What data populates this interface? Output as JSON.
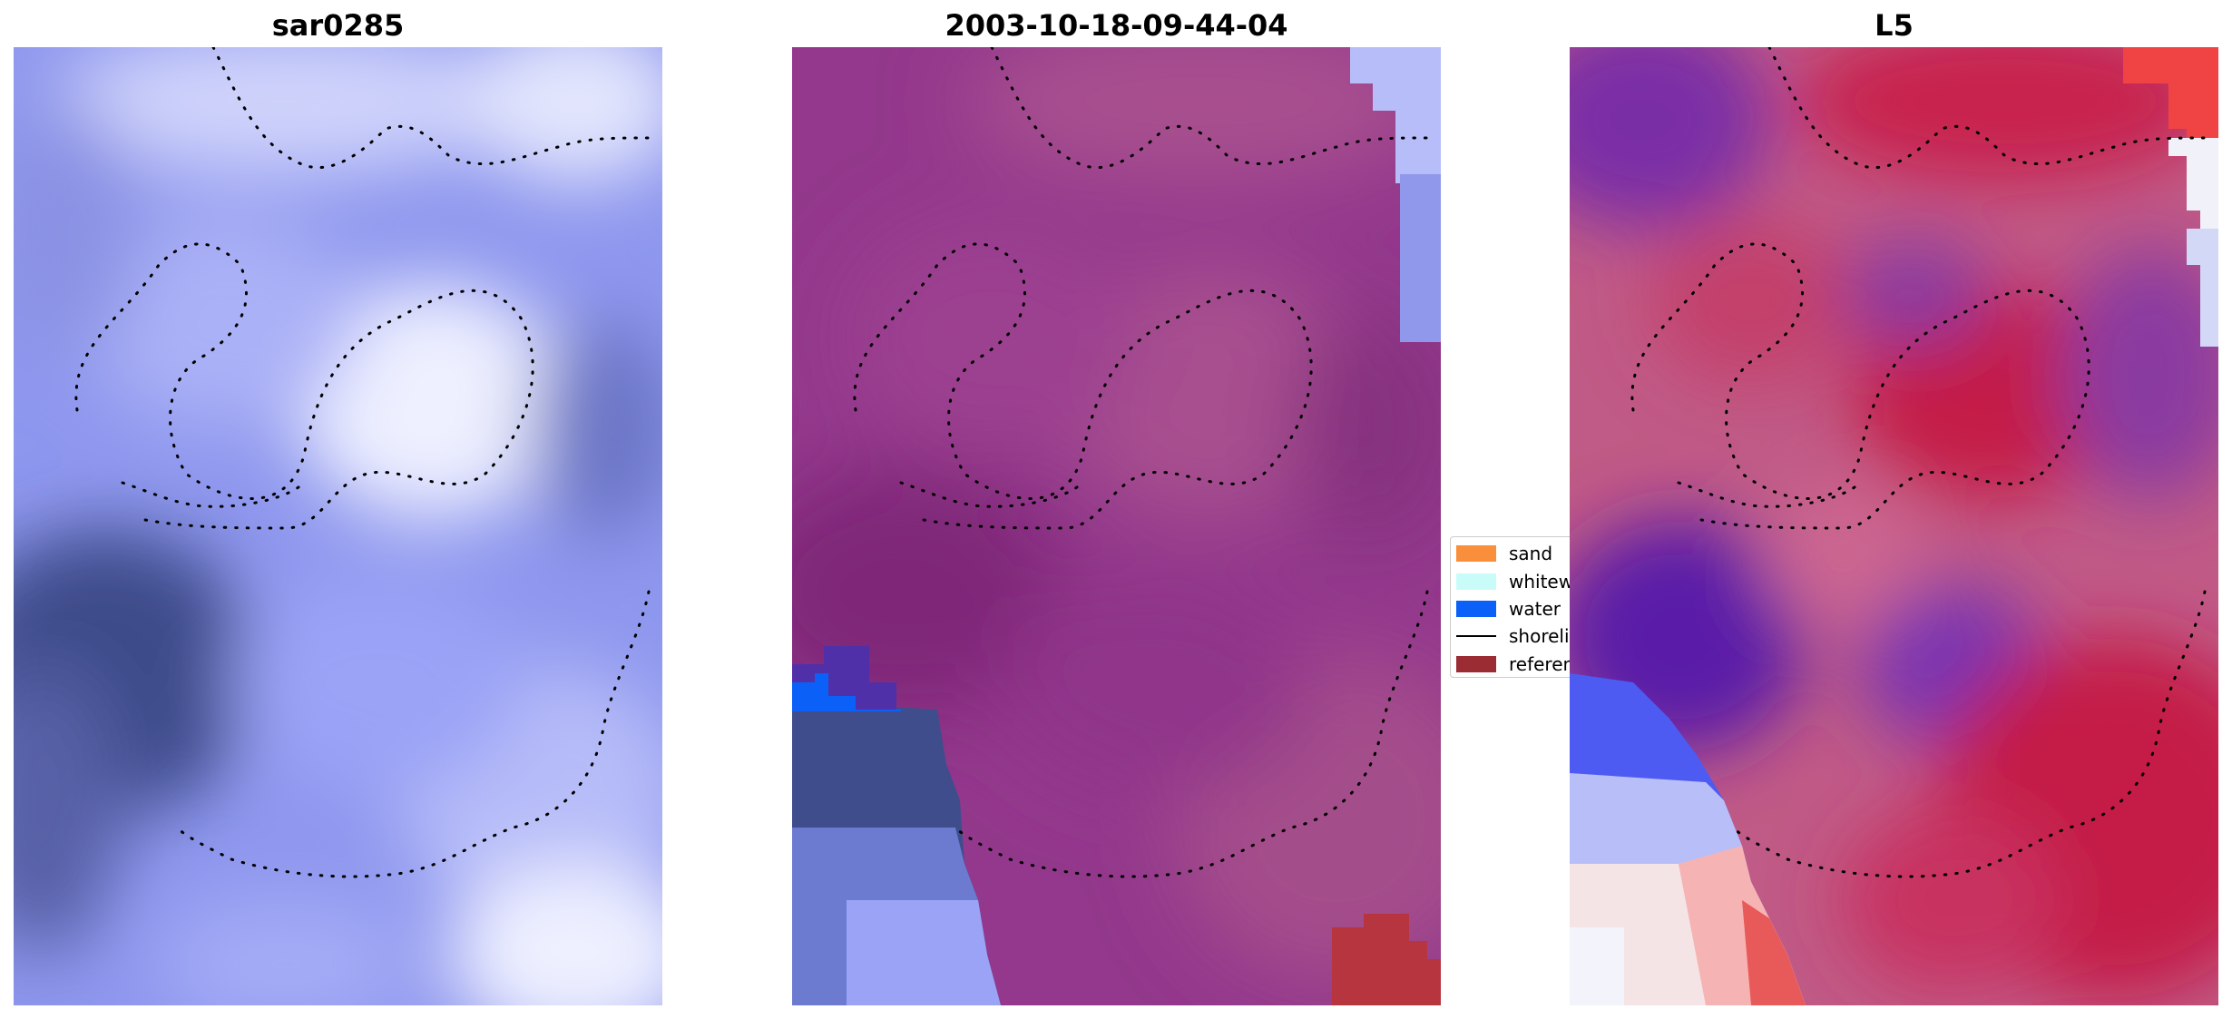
{
  "panels": [
    {
      "title": "sar0285"
    },
    {
      "title": "2003-10-18-09-44-04"
    },
    {
      "title": "L5"
    }
  ],
  "legend": {
    "items": [
      {
        "label": "sand",
        "kind": "patch",
        "color": "#f98f3a"
      },
      {
        "label": "whitewater",
        "kind": "patch",
        "color": "#c9fcf8"
      },
      {
        "label": "water",
        "kind": "patch",
        "color": "#0b60f7"
      },
      {
        "label": "shoreline",
        "kind": "line",
        "color": "#000000"
      },
      {
        "label": "reference",
        "kind": "patch",
        "color": "#9b2c34"
      }
    ]
  },
  "colors": {
    "cmap_low": "#3b4c8a",
    "cmap_mid": "#9aa3f6",
    "cmap_high": "#eef0ff",
    "class_overlay": "#b0306a",
    "diverging_neg": "#1a2cf5",
    "diverging_pos": "#c0143c"
  }
}
